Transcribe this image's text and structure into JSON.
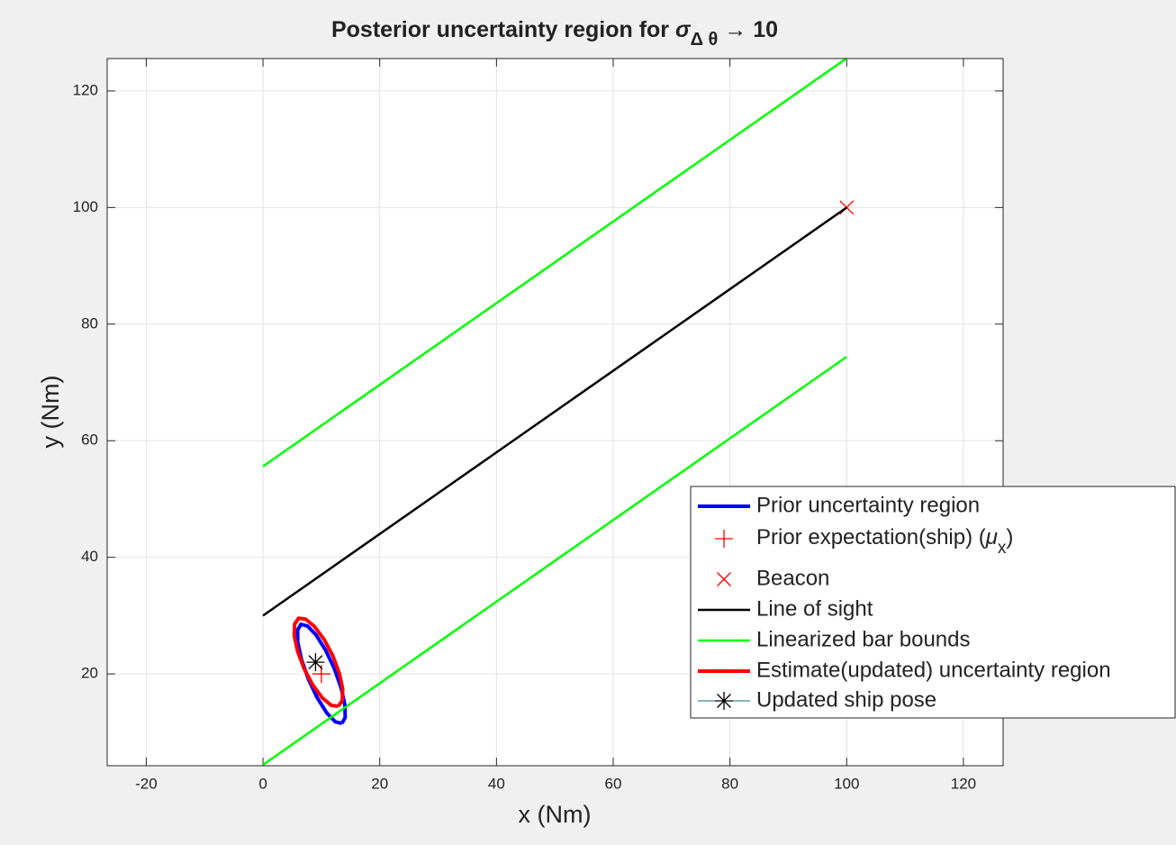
{
  "chart_data": {
    "type": "line",
    "title": [
      {
        "text": "Posterior uncertainty region for "
      },
      {
        "text": "σ",
        "italic": true
      },
      {
        "text": "Δ θ",
        "sub": true
      },
      {
        "text": " → 10"
      }
    ],
    "x_label": "x (Nm)",
    "y_label": "y (Nm)",
    "xlim": [
      -26.7,
      126.8
    ],
    "ylim": [
      4.25,
      125.55
    ],
    "xticks": [
      -20,
      0,
      20,
      40,
      60,
      80,
      100,
      120
    ],
    "yticks": [
      20,
      40,
      60,
      80,
      100,
      120
    ],
    "grid": true,
    "legend": "lower right",
    "series": [
      {
        "name": "Prior uncertainty region",
        "style": "line",
        "color": "#0000ff",
        "width": 4,
        "x": [
          13.5,
          14.08,
          14.04,
          13.39,
          12.22,
          10.71,
          9.1,
          7.62,
          6.5,
          5.92,
          5.96,
          6.61,
          7.78,
          9.29,
          10.9,
          12.38,
          13.5
        ],
        "y": [
          11.5,
          12.49,
          14.63,
          17.58,
          20.91,
          24.1,
          26.67,
          28.21,
          28.51,
          27.51,
          25.37,
          22.42,
          19.09,
          15.9,
          13.33,
          11.79,
          11.5
        ]
      },
      {
        "name": [
          {
            "text": "Prior expectation(ship) ("
          },
          {
            "text": "μ",
            "italic": true
          },
          {
            "text": "x",
            "sub": true
          },
          {
            "text": ")"
          }
        ],
        "style": "marker",
        "marker": "plus",
        "color": "#ff0000",
        "x": [
          10
        ],
        "y": [
          20
        ]
      },
      {
        "name": "Beacon",
        "style": "marker",
        "marker": "cross",
        "color": "#ff0000",
        "x": [
          100
        ],
        "y": [
          100
        ]
      },
      {
        "name": "Line of sight",
        "style": "line",
        "color": "#000000",
        "width": 2.5,
        "x": [
          0,
          100
        ],
        "y": [
          30,
          100
        ]
      },
      {
        "name": "Linearized bar bounds",
        "style": "line",
        "color": "#00ff00",
        "width": 2.5,
        "x": [
          0,
          100,
          null,
          0,
          100
        ],
        "y": [
          55.6,
          125.6,
          null,
          4.4,
          74.4
        ]
      },
      {
        "name": "Estimate(updated) uncertainty region",
        "style": "line",
        "color": "#ff0000",
        "width": 4,
        "x": [
          12.9,
          13.58,
          13.65,
          13.07,
          11.96,
          10.47,
          8.83,
          7.3,
          6.1,
          5.42,
          5.35,
          5.93,
          7.04,
          8.53,
          10.17,
          11.7,
          12.9
        ],
        "y": [
          14.45,
          15.44,
          17.44,
          20.13,
          23.11,
          25.91,
          28.12,
          29.4,
          29.55,
          28.56,
          26.56,
          23.87,
          20.89,
          18.09,
          15.88,
          14.6,
          14.45
        ]
      },
      {
        "name": "Updated ship pose",
        "style": "marker",
        "marker": "asterisk",
        "color": "#000000",
        "legend_line_color": "#0e6e7e",
        "x": [
          9
        ],
        "y": [
          22
        ]
      }
    ]
  }
}
